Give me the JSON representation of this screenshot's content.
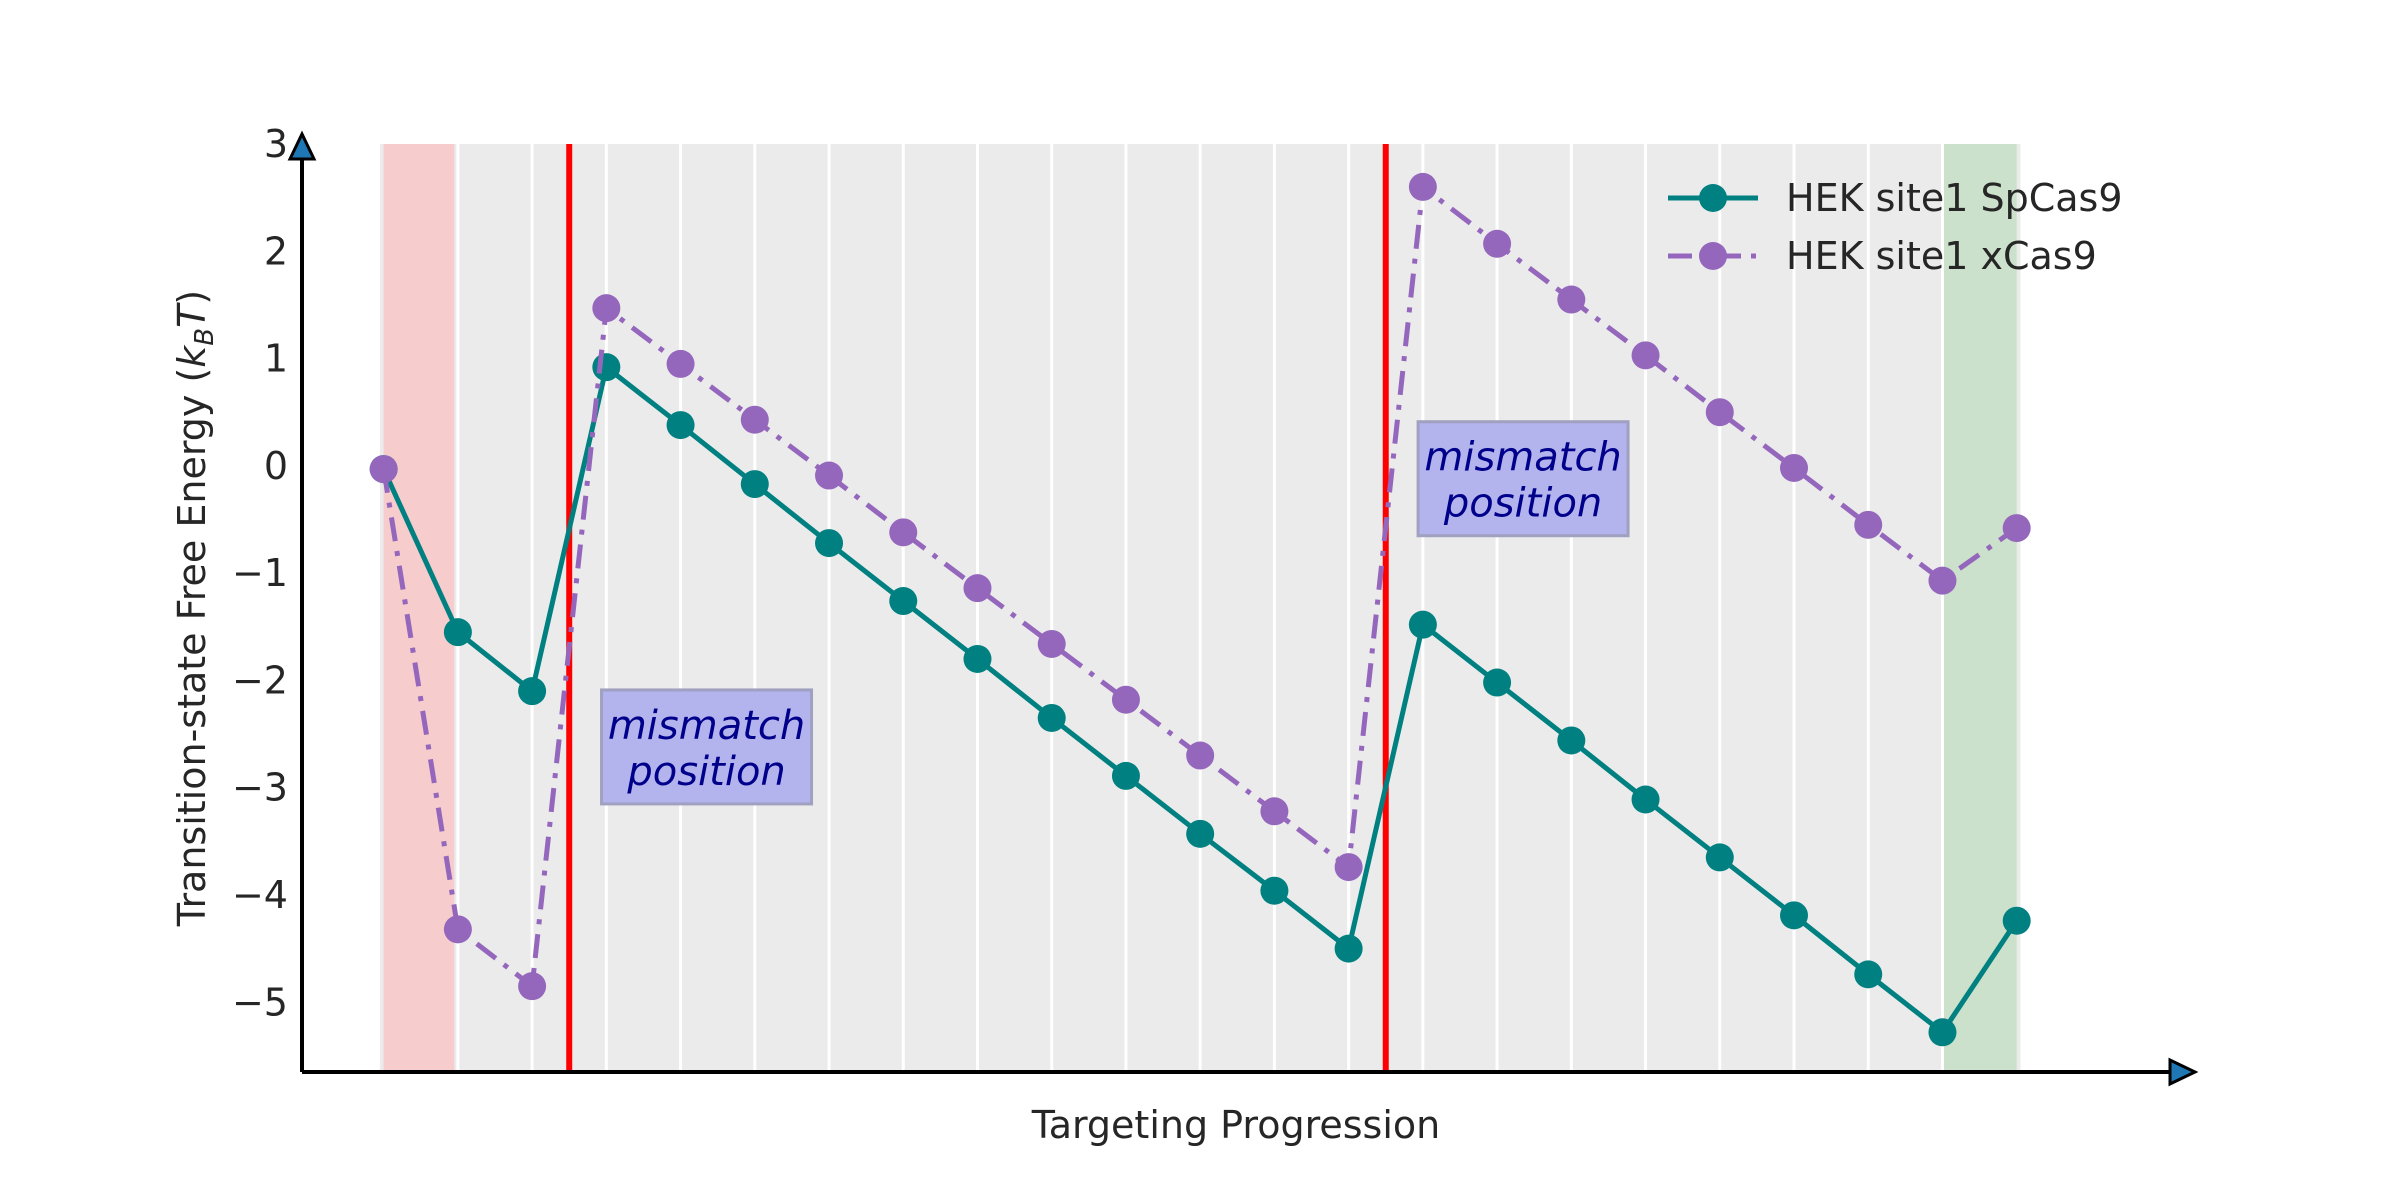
{
  "chart_data": {
    "type": "line",
    "xlabel": "Targeting Progression",
    "ylabel_main": "Transition-state Free Energy (",
    "ylabel_k": "k",
    "ylabel_sub": "B",
    "ylabel_t": "T",
    "ylabel_close": ")",
    "ylim": [
      -5.65,
      3.0
    ],
    "yticks": [
      3,
      2,
      1,
      0,
      -1,
      -2,
      -3,
      -4,
      -5
    ],
    "ytick_labels": [
      "3",
      "2",
      "1",
      "0",
      "−1",
      "−2",
      "−3",
      "−4",
      "−5"
    ],
    "x": [
      0,
      1,
      2,
      3,
      4,
      5,
      6,
      7,
      8,
      9,
      10,
      11,
      12,
      13,
      14,
      15,
      16,
      17,
      18,
      19,
      20,
      21,
      22
    ],
    "xlim": [
      -1.1,
      24.2
    ],
    "series": [
      {
        "name": "HEK site1 SpCas9",
        "color": "#008080",
        "linestyle": "solid",
        "values": [
          -0.03,
          -1.55,
          -2.1,
          0.92,
          0.38,
          -0.17,
          -0.72,
          -1.26,
          -1.8,
          -2.35,
          -2.89,
          -3.43,
          -3.96,
          -4.5,
          -1.48,
          -2.02,
          -2.56,
          -3.11,
          -3.65,
          -4.19,
          -4.74,
          -5.28,
          -4.24
        ]
      },
      {
        "name": "HEK site1 xCas9",
        "color": "#9467bd",
        "linestyle": "dashdot",
        "values": [
          -0.03,
          -4.32,
          -4.85,
          1.47,
          0.95,
          0.43,
          -0.09,
          -0.62,
          -1.14,
          -1.66,
          -2.18,
          -2.7,
          -3.22,
          -3.74,
          2.6,
          2.07,
          1.55,
          1.03,
          0.5,
          -0.02,
          -0.55,
          -1.07,
          -0.58
        ]
      }
    ],
    "grid": true,
    "legend_position": "top-right",
    "mismatch_lines_x": [
      2.5,
      13.5
    ],
    "mismatch_line_color": "#ff0000",
    "shaded_start": [
      0,
      1
    ],
    "shaded_start_color": "#ffb2b2",
    "shaded_end": [
      21,
      22
    ],
    "shaded_end_color": "#b2d8b2",
    "annotations": [
      {
        "line1": "mismatch",
        "line2": "position",
        "x": 4.35,
        "y": -2.62
      },
      {
        "line1": "mismatch",
        "line2": "position",
        "x": 15.35,
        "y": -0.12
      }
    ]
  }
}
